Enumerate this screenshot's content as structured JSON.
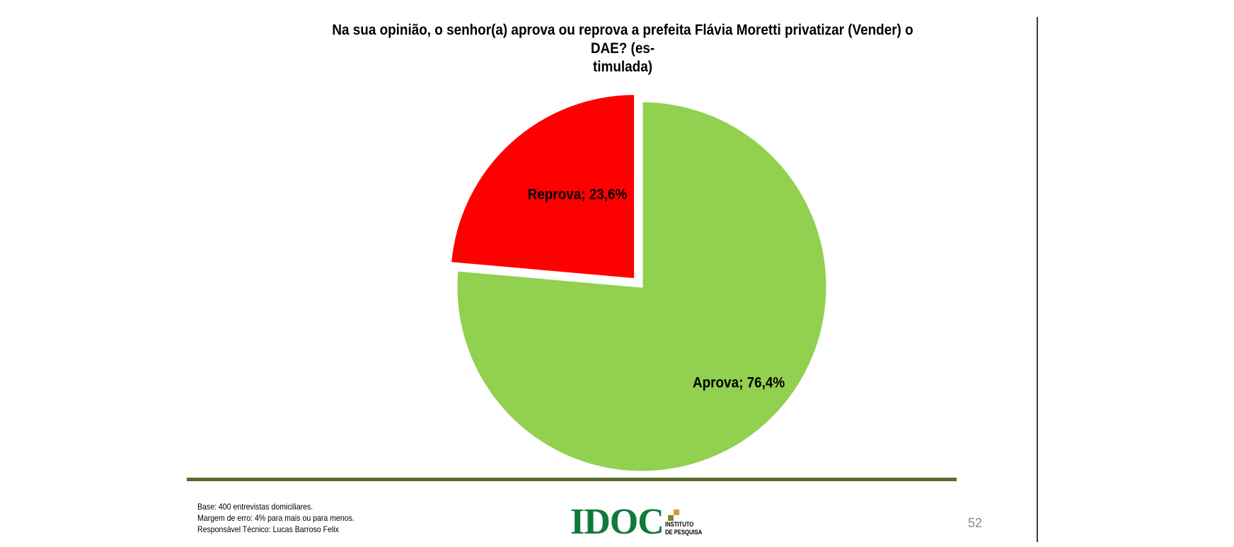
{
  "chart_data": {
    "type": "pie",
    "title_lines": [
      "Na sua opinião, o senhor(a) aprova ou reprova a prefeita Flávia Moretti privatizar (Vender) o DAE?  (es-",
      "timulada)"
    ],
    "slices": [
      {
        "name": "Reprova",
        "value": 23.6,
        "label": "Reprova; 23,6%",
        "color": "#ff0000",
        "exploded": true
      },
      {
        "name": "Aprova",
        "value": 76.4,
        "label": "Aprova; 76,4%",
        "color": "#92d050",
        "exploded": false
      }
    ],
    "start": "12 o'clock",
    "direction": "counter-clockwise from top for first slice"
  },
  "footer": {
    "notes": [
      "Base: 400 entrevistas domiciliares.",
      "Margem de erro: 4% para mais ou para menos.",
      "Responsável Técnico: Lucas Barroso Felix"
    ],
    "rule_color": "#5a6b2f"
  },
  "logo": {
    "mark": "IDOC",
    "subtitle_lines": [
      "INSTITUTO",
      "DE PESQUISA"
    ],
    "mark_color": "#0f7a3a",
    "square_colors": [
      "#c9a227",
      "#7a8b2f"
    ]
  },
  "page_number": "52"
}
